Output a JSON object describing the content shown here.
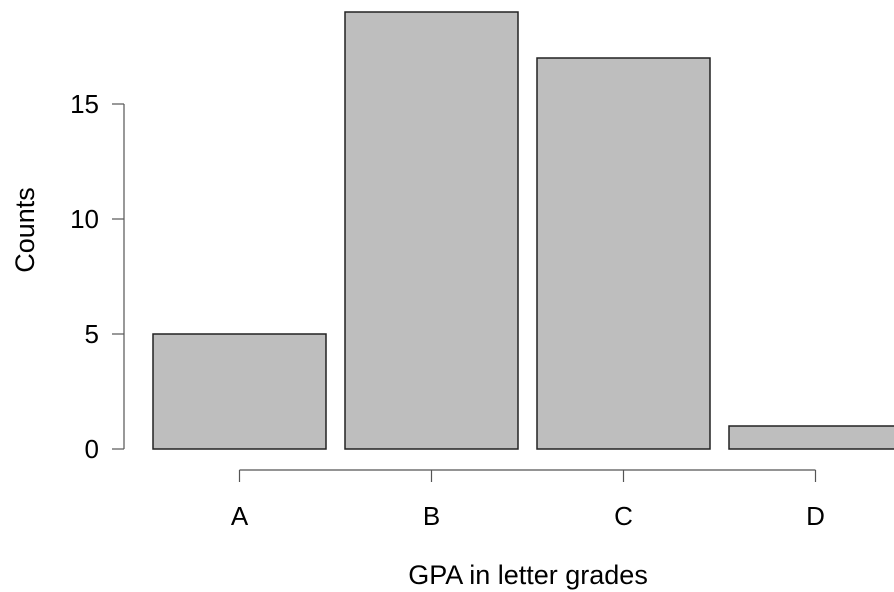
{
  "chart_data": {
    "type": "bar",
    "categories": [
      "A",
      "B",
      "C",
      "D"
    ],
    "values": [
      5,
      19,
      17,
      1
    ],
    "xlabel": "GPA in letter grades",
    "ylabel": "Counts",
    "ylim": [
      0,
      19
    ],
    "y_ticks": [
      0,
      5,
      10,
      15
    ],
    "grid": false,
    "bar_color": "#bebebe",
    "bar_edge_color": "#222222"
  }
}
